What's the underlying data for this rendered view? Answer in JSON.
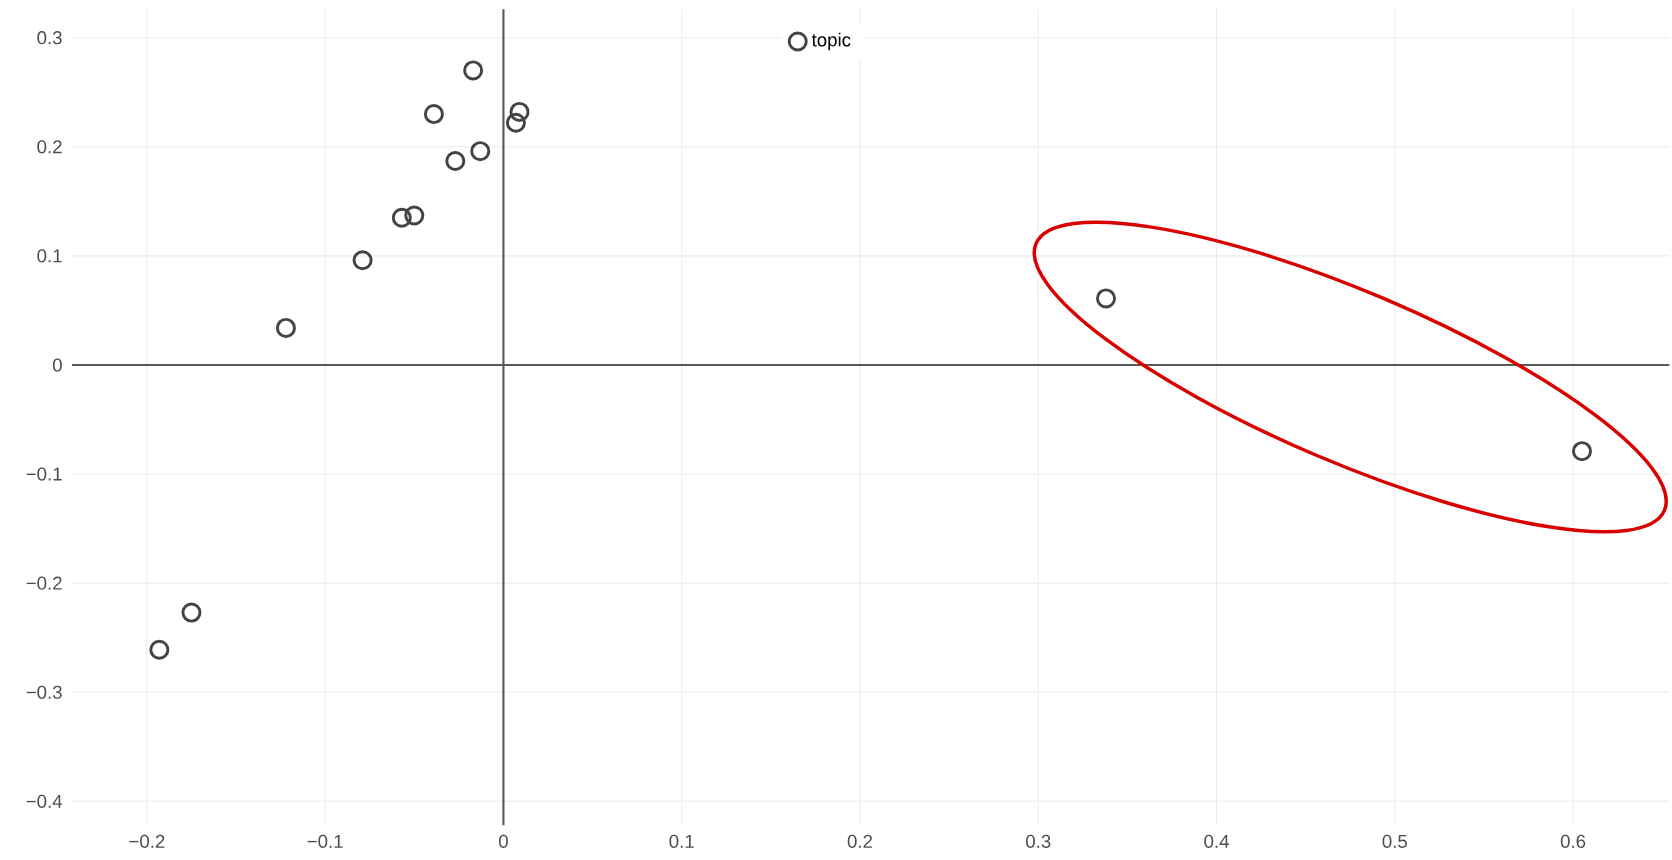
{
  "chart_data": {
    "type": "scatter",
    "marker": "circle",
    "grid": true,
    "legend": "top",
    "xlim": [
      -0.242,
      0.654
    ],
    "ylim": [
      -0.422,
      0.326
    ],
    "xticks": [
      {
        "value": -0.2,
        "label": "−0.2"
      },
      {
        "value": -0.1,
        "label": "−0.1"
      },
      0,
      0.1,
      0.2,
      0.3,
      0.4,
      0.5,
      0.6
    ],
    "yticks": [
      {
        "value": -0.4,
        "label": "−0.4"
      },
      {
        "value": -0.3,
        "label": "−0.3"
      },
      {
        "value": -0.2,
        "label": "−0.2"
      },
      {
        "value": -0.1,
        "label": "−0.1"
      },
      0,
      0.1,
      0.2,
      0.3
    ],
    "series": [
      {
        "name": "topic",
        "color": "#444444",
        "x": [
          -0.017,
          -0.039,
          0.009,
          0.007,
          -0.013,
          -0.027,
          -0.057,
          -0.05,
          -0.079,
          -0.122,
          0.338,
          0.605,
          -0.175,
          -0.193
        ],
        "values": [
          0.27,
          0.23,
          0.232,
          0.222,
          0.196,
          0.187,
          0.135,
          0.137,
          0.096,
          0.034,
          0.061,
          -0.079,
          -0.227,
          -0.261
        ]
      }
    ]
  }
}
